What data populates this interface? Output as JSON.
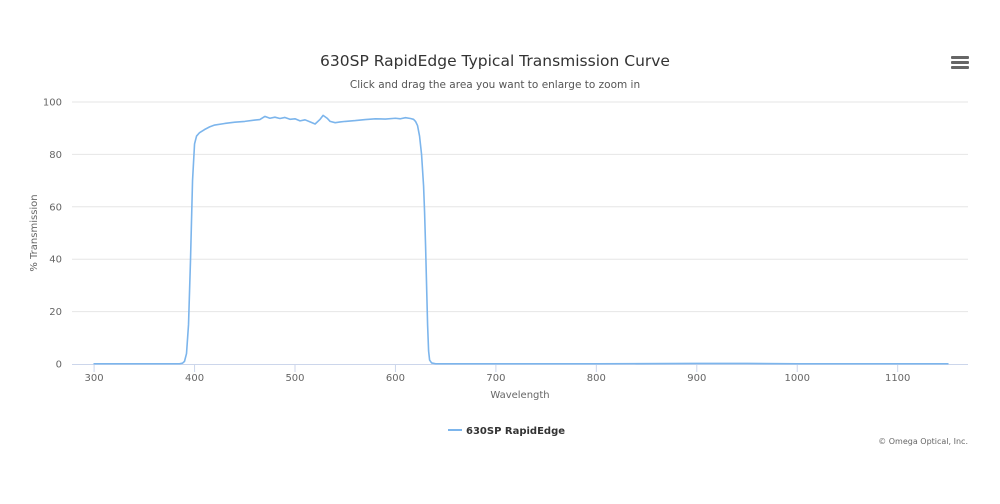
{
  "chart_data": {
    "type": "line",
    "title": "630SP RapidEdge Typical Transmission Curve",
    "subtitle": "Click and drag the area you want to enlarge to zoom in",
    "xlabel": "Wavelength",
    "ylabel": "% Transmission",
    "xlim": [
      278,
      1170
    ],
    "ylim": [
      0,
      100
    ],
    "x_ticks": [
      300,
      400,
      500,
      600,
      700,
      800,
      900,
      1000,
      1100
    ],
    "y_ticks": [
      0,
      20,
      40,
      60,
      80,
      100
    ],
    "grid": "horizontal",
    "legend_position": "bottom-center",
    "series": [
      {
        "name": "630SP RapidEdge",
        "color": "#7cb5ec",
        "points": [
          [
            300,
            0.1
          ],
          [
            350,
            0.1
          ],
          [
            385,
            0.1
          ],
          [
            388,
            0.3
          ],
          [
            390,
            1
          ],
          [
            392,
            4
          ],
          [
            394,
            15
          ],
          [
            396,
            40
          ],
          [
            398,
            70
          ],
          [
            400,
            84
          ],
          [
            402,
            87
          ],
          [
            405,
            88.3
          ],
          [
            410,
            89.5
          ],
          [
            415,
            90.5
          ],
          [
            420,
            91.2
          ],
          [
            430,
            91.8
          ],
          [
            440,
            92.3
          ],
          [
            450,
            92.6
          ],
          [
            460,
            93.1
          ],
          [
            465,
            93.3
          ],
          [
            470,
            94.5
          ],
          [
            475,
            93.8
          ],
          [
            480,
            94.2
          ],
          [
            485,
            93.7
          ],
          [
            490,
            94.1
          ],
          [
            495,
            93.4
          ],
          [
            500,
            93.6
          ],
          [
            505,
            92.8
          ],
          [
            510,
            93.2
          ],
          [
            515,
            92.4
          ],
          [
            520,
            91.6
          ],
          [
            525,
            93.4
          ],
          [
            528,
            94.9
          ],
          [
            532,
            93.8
          ],
          [
            535,
            92.6
          ],
          [
            540,
            92.1
          ],
          [
            545,
            92.4
          ],
          [
            550,
            92.6
          ],
          [
            560,
            92.9
          ],
          [
            570,
            93.3
          ],
          [
            580,
            93.6
          ],
          [
            590,
            93.5
          ],
          [
            600,
            93.8
          ],
          [
            605,
            93.6
          ],
          [
            610,
            94.0
          ],
          [
            615,
            93.7
          ],
          [
            618,
            93.4
          ],
          [
            620,
            92.6
          ],
          [
            622,
            91.0
          ],
          [
            624,
            87.0
          ],
          [
            626,
            80.0
          ],
          [
            628,
            68.0
          ],
          [
            629,
            58.0
          ],
          [
            630,
            45.0
          ],
          [
            631,
            30.0
          ],
          [
            632,
            15.0
          ],
          [
            633,
            5.0
          ],
          [
            634,
            1.5
          ],
          [
            636,
            0.4
          ],
          [
            640,
            0.1
          ],
          [
            700,
            0.1
          ],
          [
            800,
            0.1
          ],
          [
            900,
            0.2
          ],
          [
            950,
            0.2
          ],
          [
            1000,
            0.1
          ],
          [
            1100,
            0.1
          ],
          [
            1150,
            0.1
          ]
        ]
      }
    ],
    "credit": "© Omega Optical, Inc."
  }
}
